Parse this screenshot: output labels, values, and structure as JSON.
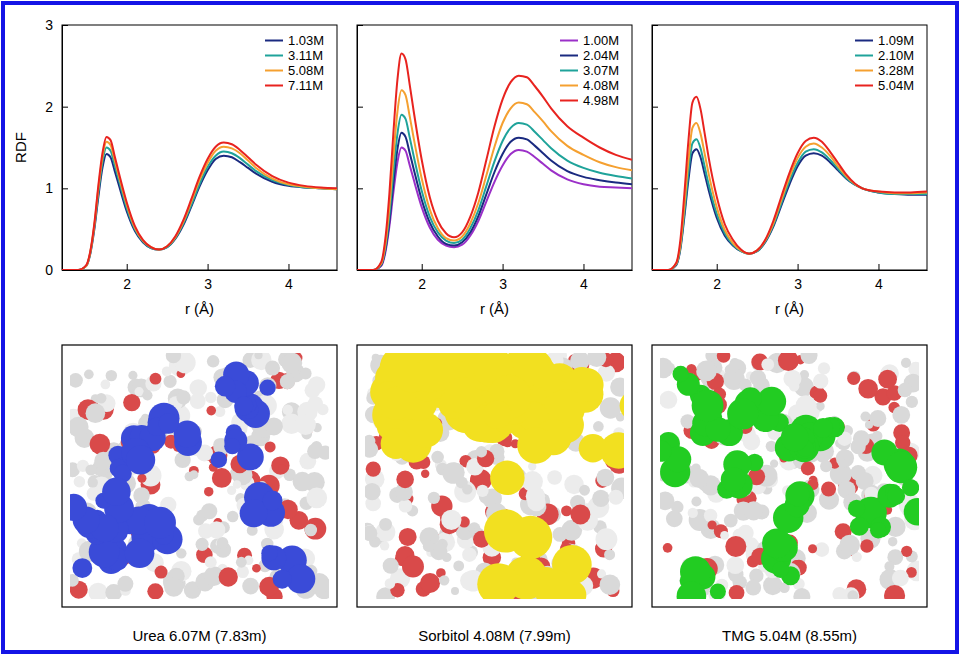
{
  "chart_data": [
    {
      "type": "line",
      "xlabel": "r (Å)",
      "ylabel": "RDF",
      "legend": "upper right",
      "xlim": [
        1.2,
        4.6
      ],
      "xticks": [
        2,
        3,
        4
      ],
      "ylim": [
        0,
        3
      ],
      "yticks": [
        0,
        1,
        2,
        3
      ],
      "x": [
        1.2,
        1.4,
        1.5,
        1.55,
        1.6,
        1.65,
        1.7,
        1.75,
        1.8,
        1.85,
        1.9,
        2.0,
        2.1,
        2.2,
        2.3,
        2.4,
        2.5,
        2.6,
        2.7,
        2.8,
        2.9,
        3.0,
        3.1,
        3.2,
        3.3,
        3.4,
        3.5,
        3.6,
        3.8,
        4.0,
        4.2,
        4.4,
        4.6
      ],
      "series": [
        {
          "name": "1.03M",
          "color": "#1a2a80",
          "values": [
            0,
            0,
            0.05,
            0.2,
            0.5,
            0.9,
            1.25,
            1.42,
            1.38,
            1.22,
            1.05,
            0.72,
            0.48,
            0.34,
            0.27,
            0.25,
            0.28,
            0.38,
            0.55,
            0.78,
            1.02,
            1.22,
            1.36,
            1.4,
            1.38,
            1.32,
            1.25,
            1.18,
            1.08,
            1.03,
            1.01,
            1.0,
            0.99
          ]
        },
        {
          "name": "3.11M",
          "color": "#1fa39a",
          "values": [
            0,
            0,
            0.05,
            0.21,
            0.53,
            0.95,
            1.32,
            1.5,
            1.46,
            1.29,
            1.11,
            0.76,
            0.5,
            0.35,
            0.27,
            0.25,
            0.28,
            0.39,
            0.57,
            0.8,
            1.05,
            1.26,
            1.4,
            1.45,
            1.43,
            1.37,
            1.29,
            1.21,
            1.1,
            1.04,
            1.01,
            1.0,
            0.99
          ]
        },
        {
          "name": "5.08M",
          "color": "#f5a030",
          "values": [
            0,
            0,
            0.05,
            0.22,
            0.55,
            1.0,
            1.38,
            1.57,
            1.53,
            1.35,
            1.16,
            0.8,
            0.52,
            0.36,
            0.28,
            0.25,
            0.29,
            0.4,
            0.59,
            0.84,
            1.1,
            1.31,
            1.46,
            1.51,
            1.49,
            1.43,
            1.34,
            1.25,
            1.12,
            1.05,
            1.02,
            1.0,
            0.99
          ]
        },
        {
          "name": "7.11M",
          "color": "#e8231f",
          "values": [
            0,
            0,
            0.06,
            0.23,
            0.57,
            1.04,
            1.43,
            1.63,
            1.59,
            1.4,
            1.2,
            0.83,
            0.54,
            0.37,
            0.28,
            0.25,
            0.29,
            0.41,
            0.61,
            0.87,
            1.14,
            1.36,
            1.51,
            1.56,
            1.54,
            1.47,
            1.38,
            1.29,
            1.15,
            1.07,
            1.03,
            1.01,
            1.0
          ]
        }
      ]
    },
    {
      "type": "line",
      "xlabel": "r (Å)",
      "legend": "upper right",
      "tick_labels": "x",
      "xlim": [
        1.2,
        4.6
      ],
      "xticks": [
        2,
        3,
        4
      ],
      "ylim": [
        0,
        3
      ],
      "yticks": [
        0,
        1,
        2,
        3
      ],
      "x": [
        1.2,
        1.4,
        1.5,
        1.55,
        1.6,
        1.65,
        1.7,
        1.75,
        1.8,
        1.85,
        1.9,
        2.0,
        2.1,
        2.2,
        2.3,
        2.4,
        2.5,
        2.6,
        2.7,
        2.8,
        2.9,
        3.0,
        3.1,
        3.2,
        3.3,
        3.4,
        3.5,
        3.6,
        3.8,
        4.0,
        4.2,
        4.4,
        4.6
      ],
      "series": [
        {
          "name": "1.00M",
          "color": "#9b30c8",
          "values": [
            0,
            0,
            0.05,
            0.21,
            0.53,
            0.95,
            1.32,
            1.5,
            1.46,
            1.29,
            1.11,
            0.77,
            0.52,
            0.37,
            0.3,
            0.28,
            0.31,
            0.42,
            0.6,
            0.84,
            1.08,
            1.28,
            1.42,
            1.47,
            1.45,
            1.38,
            1.3,
            1.22,
            1.11,
            1.05,
            1.02,
            1.01,
            1.0
          ]
        },
        {
          "name": "2.04M",
          "color": "#1a2a80",
          "values": [
            0,
            0,
            0.06,
            0.24,
            0.59,
            1.06,
            1.48,
            1.68,
            1.63,
            1.44,
            1.24,
            0.86,
            0.58,
            0.41,
            0.32,
            0.3,
            0.34,
            0.46,
            0.66,
            0.93,
            1.2,
            1.42,
            1.57,
            1.62,
            1.6,
            1.52,
            1.43,
            1.34,
            1.21,
            1.14,
            1.1,
            1.07,
            1.05
          ]
        },
        {
          "name": "3.07M",
          "color": "#1fa39a",
          "values": [
            0,
            0,
            0.07,
            0.27,
            0.67,
            1.2,
            1.67,
            1.9,
            1.85,
            1.63,
            1.4,
            0.97,
            0.65,
            0.46,
            0.36,
            0.33,
            0.37,
            0.51,
            0.73,
            1.03,
            1.33,
            1.58,
            1.74,
            1.8,
            1.78,
            1.69,
            1.59,
            1.49,
            1.34,
            1.25,
            1.19,
            1.15,
            1.12
          ]
        },
        {
          "name": "4.08M",
          "color": "#f5a030",
          "values": [
            0,
            0,
            0.08,
            0.31,
            0.77,
            1.39,
            1.94,
            2.2,
            2.14,
            1.89,
            1.62,
            1.12,
            0.74,
            0.51,
            0.39,
            0.36,
            0.41,
            0.57,
            0.82,
            1.16,
            1.51,
            1.8,
            1.98,
            2.05,
            2.03,
            1.93,
            1.82,
            1.7,
            1.52,
            1.41,
            1.32,
            1.26,
            1.22
          ]
        },
        {
          "name": "4.98M",
          "color": "#e8231f",
          "values": [
            0,
            0,
            0.1,
            0.38,
            0.93,
            1.68,
            2.33,
            2.65,
            2.58,
            2.28,
            1.95,
            1.35,
            0.89,
            0.6,
            0.45,
            0.4,
            0.46,
            0.65,
            0.95,
            1.35,
            1.76,
            2.09,
            2.3,
            2.38,
            2.36,
            2.25,
            2.12,
            1.98,
            1.76,
            1.62,
            1.5,
            1.41,
            1.35
          ]
        }
      ]
    },
    {
      "type": "line",
      "xlabel": "r (Å)",
      "legend": "upper right",
      "tick_labels": "x",
      "xlim": [
        1.2,
        4.6
      ],
      "xticks": [
        2,
        3,
        4
      ],
      "ylim": [
        0,
        3
      ],
      "yticks": [
        0,
        1,
        2,
        3
      ],
      "x": [
        1.2,
        1.4,
        1.5,
        1.55,
        1.6,
        1.65,
        1.7,
        1.75,
        1.8,
        1.85,
        1.9,
        2.0,
        2.1,
        2.2,
        2.3,
        2.4,
        2.5,
        2.6,
        2.7,
        2.8,
        2.9,
        3.0,
        3.1,
        3.2,
        3.3,
        3.4,
        3.5,
        3.6,
        3.8,
        4.0,
        4.2,
        4.4,
        4.6
      ],
      "series": [
        {
          "name": "1.09M",
          "color": "#1a2a80",
          "values": [
            0,
            0,
            0.06,
            0.25,
            0.65,
            1.1,
            1.43,
            1.48,
            1.38,
            1.18,
            0.98,
            0.64,
            0.42,
            0.3,
            0.23,
            0.2,
            0.23,
            0.34,
            0.53,
            0.79,
            1.05,
            1.27,
            1.4,
            1.43,
            1.4,
            1.32,
            1.22,
            1.12,
            1.0,
            0.95,
            0.93,
            0.92,
            0.92
          ]
        },
        {
          "name": "2.10M",
          "color": "#1fa39a",
          "values": [
            0,
            0,
            0.07,
            0.27,
            0.7,
            1.19,
            1.55,
            1.6,
            1.49,
            1.27,
            1.05,
            0.69,
            0.45,
            0.31,
            0.23,
            0.2,
            0.23,
            0.35,
            0.55,
            0.82,
            1.09,
            1.31,
            1.45,
            1.48,
            1.44,
            1.35,
            1.24,
            1.13,
            1.0,
            0.95,
            0.93,
            0.93,
            0.93
          ]
        },
        {
          "name": "3.28M",
          "color": "#f5a030",
          "values": [
            0,
            0,
            0.08,
            0.3,
            0.79,
            1.34,
            1.74,
            1.8,
            1.67,
            1.43,
            1.18,
            0.77,
            0.49,
            0.33,
            0.24,
            0.2,
            0.24,
            0.36,
            0.57,
            0.86,
            1.14,
            1.37,
            1.51,
            1.55,
            1.5,
            1.4,
            1.27,
            1.15,
            1.0,
            0.96,
            0.94,
            0.94,
            0.95
          ]
        },
        {
          "name": "5.04M",
          "color": "#e8231f",
          "values": [
            0,
            0,
            0.09,
            0.36,
            0.93,
            1.58,
            2.05,
            2.12,
            1.97,
            1.68,
            1.38,
            0.9,
            0.56,
            0.37,
            0.25,
            0.2,
            0.24,
            0.37,
            0.6,
            0.9,
            1.19,
            1.43,
            1.58,
            1.62,
            1.57,
            1.45,
            1.31,
            1.17,
            1.0,
            0.96,
            0.95,
            0.95,
            0.96
          ]
        }
      ]
    }
  ],
  "images": [
    {
      "caption": "Urea 6.07M (7.83m)",
      "color": "#3a4bd8"
    },
    {
      "caption": "Sorbitol 4.08M (7.99m)",
      "color": "#f2e020"
    },
    {
      "caption": "TMG 5.04M (8.55m)",
      "color": "#22cc22"
    }
  ]
}
